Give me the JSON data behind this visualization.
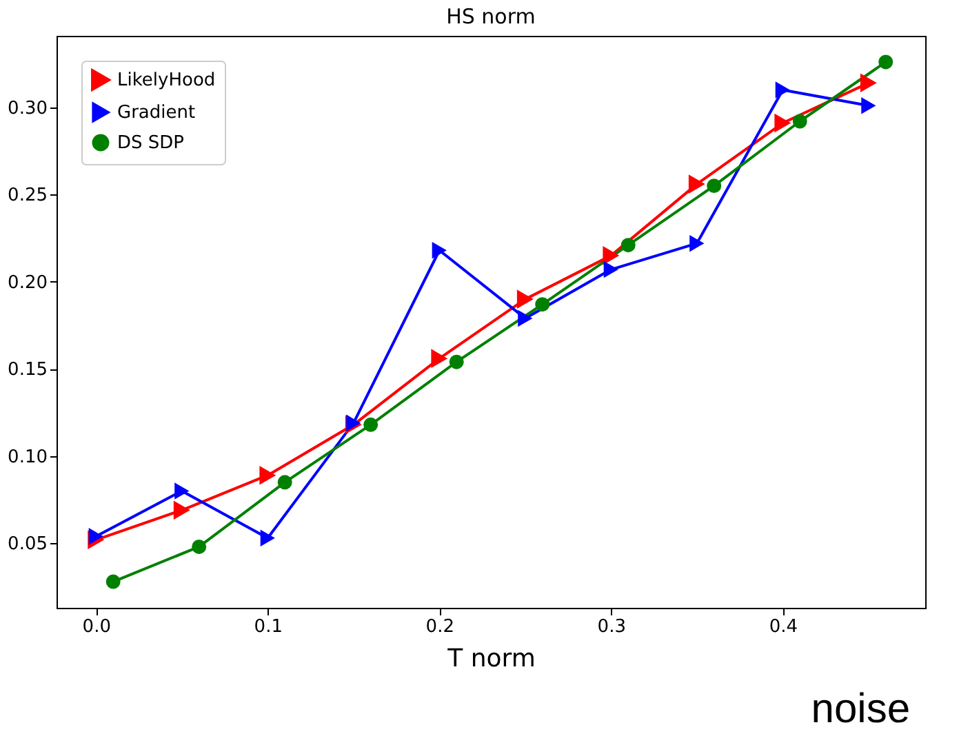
{
  "chart_data": {
    "type": "line",
    "title": "HS norm",
    "xlabel": "T norm",
    "annotations": [
      "noise"
    ],
    "series": [
      {
        "name": "LikelyHood",
        "color": "#ff0000",
        "marker": "triangle",
        "x": [
          0,
          0.05,
          0.1,
          0.15,
          0.2,
          0.25,
          0.3,
          0.35,
          0.4,
          0.45
        ],
        "values": [
          0.052,
          0.069,
          0.089,
          0.118,
          0.156,
          0.19,
          0.215,
          0.256,
          0.291,
          0.314
        ]
      },
      {
        "name": "Gradient",
        "color": "#0000ff",
        "marker": "triangle",
        "x": [
          0,
          0.05,
          0.1,
          0.15,
          0.2,
          0.25,
          0.3,
          0.35,
          0.4,
          0.45
        ],
        "values": [
          0.054,
          0.08,
          0.053,
          0.119,
          0.218,
          0.179,
          0.207,
          0.222,
          0.31,
          0.301
        ]
      },
      {
        "name": "DS SDP",
        "color": "#008000",
        "marker": "circle",
        "x": [
          0.01,
          0.06,
          0.11,
          0.16,
          0.21,
          0.26,
          0.31,
          0.36,
          0.41,
          0.46
        ],
        "values": [
          0.028,
          0.048,
          0.085,
          0.118,
          0.154,
          0.187,
          0.221,
          0.255,
          0.292,
          0.326
        ]
      }
    ],
    "xlim": [
      -0.023,
      0.483
    ],
    "ylim": [
      0.013,
      0.341
    ],
    "xticks": [
      {
        "value": 0,
        "label": "0.0"
      },
      0.1,
      0.2,
      0.3,
      0.4
    ],
    "yticks": [
      {
        "value": 0.05,
        "label": "0.05"
      },
      {
        "value": 0.1,
        "label": "0.10"
      },
      0.15,
      {
        "value": 0.2,
        "label": "0.20"
      },
      0.25,
      {
        "value": 0.3,
        "label": "0.30"
      }
    ],
    "grid": false,
    "legend": "top left",
    "line_style": "solid"
  }
}
